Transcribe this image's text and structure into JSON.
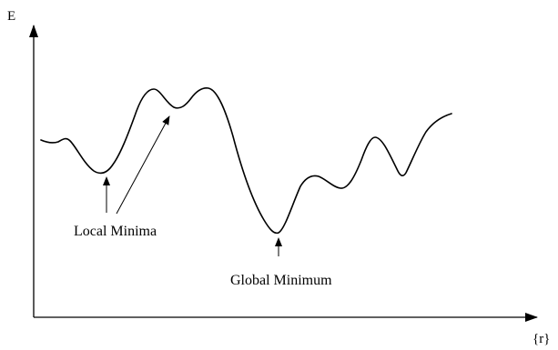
{
  "axes": {
    "y_label": "E",
    "x_label": "{r}"
  },
  "annotations": {
    "local_minima": "Local Minima",
    "global_minimum": "Global Minimum"
  },
  "colors": {
    "stroke": "#000000",
    "background": "#ffffff"
  }
}
